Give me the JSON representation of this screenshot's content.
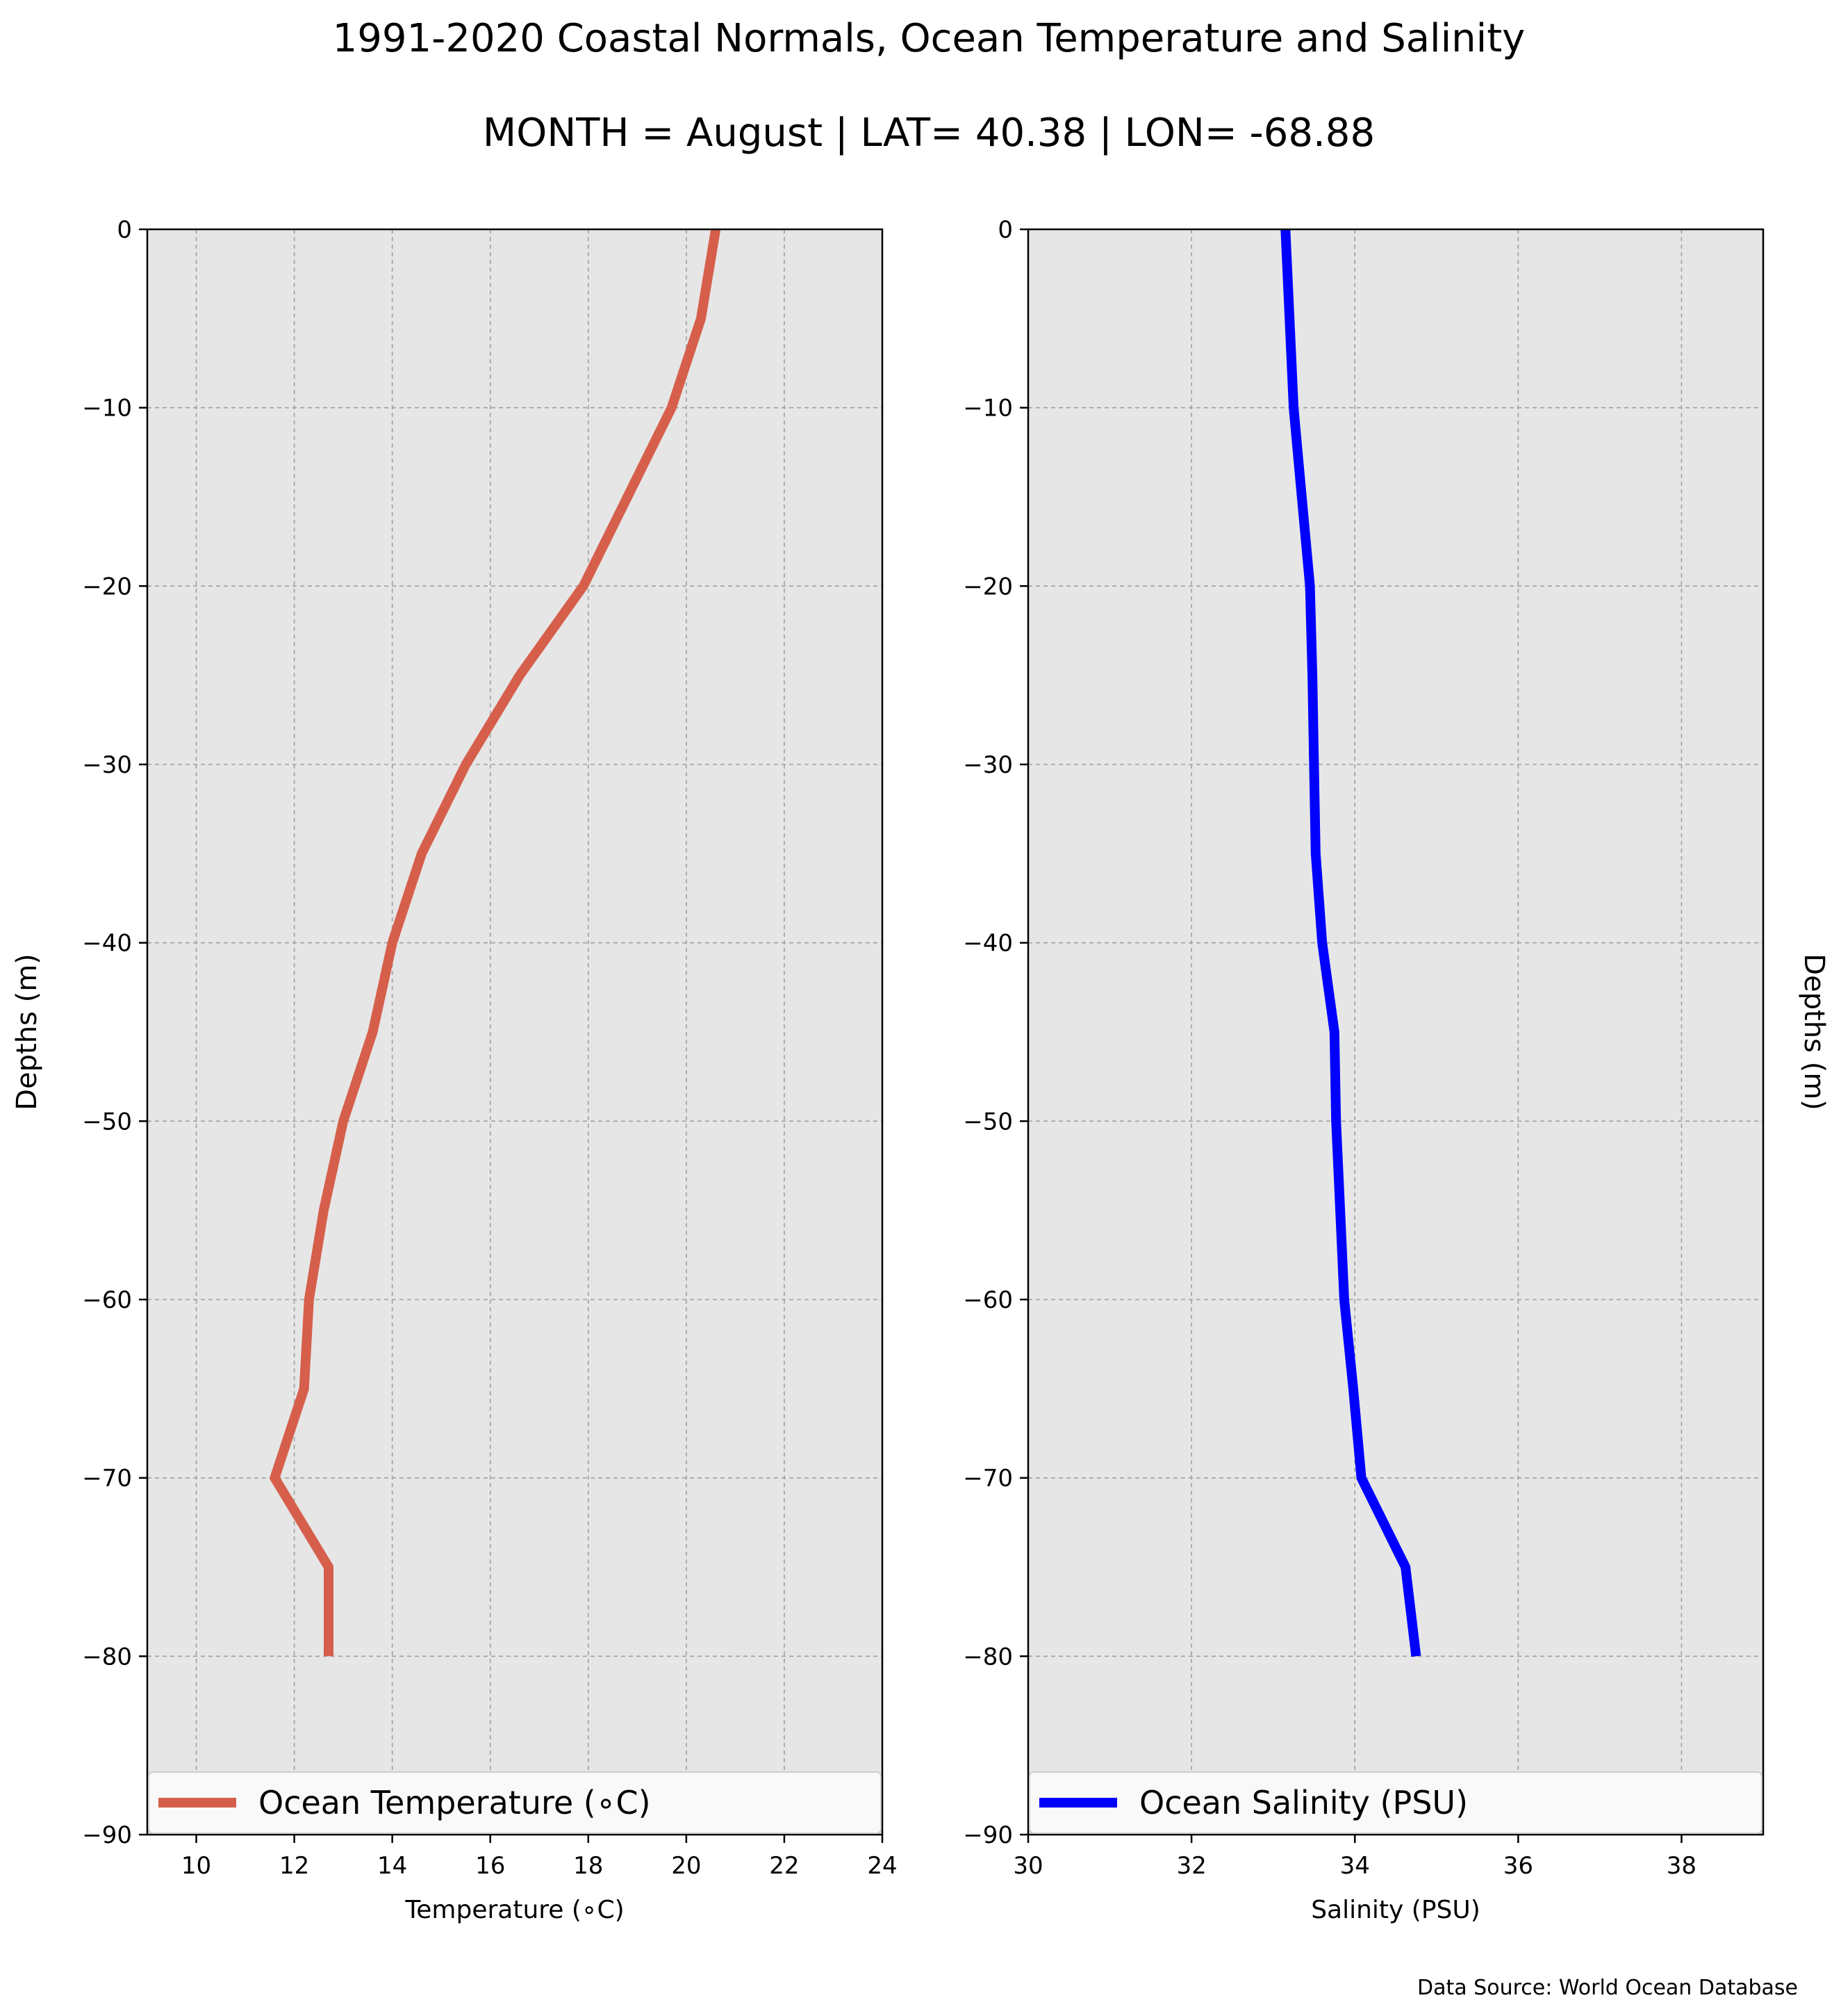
{
  "title": "1991-2020 Coastal Normals, Ocean Temperature and Salinity",
  "subtitle": "MONTH = August | LAT= 40.38 | LON= -68.88",
  "source": "Data Source: World Ocean Database",
  "chart_data": [
    {
      "type": "line",
      "xlabel": "Temperature (∘C)",
      "ylabel": "Depths (m)",
      "xlim": [
        9,
        24
      ],
      "ylim": [
        -90,
        0
      ],
      "xticks": [
        10,
        12,
        14,
        16,
        18,
        20,
        22,
        24
      ],
      "xtick_labels": [
        "10",
        "12",
        "14",
        "16",
        "18",
        "20",
        "22",
        "24"
      ],
      "yticks": [
        0,
        -10,
        -20,
        -30,
        -40,
        -50,
        -60,
        -70,
        -80,
        -90
      ],
      "ytick_labels": [
        "0",
        "−10",
        "−20",
        "−30",
        "−40",
        "−50",
        "−60",
        "−70",
        "−80",
        "−90"
      ],
      "grid": true,
      "legend": "bottom, full width",
      "series": [
        {
          "name": "Ocean Temperature (∘C)",
          "color": "#d65f4c",
          "x": [
            20.6,
            20.3,
            19.7,
            18.8,
            17.9,
            16.6,
            15.5,
            14.6,
            14.0,
            13.6,
            13.0,
            12.6,
            12.3,
            12.2,
            11.6,
            12.7,
            12.7
          ],
          "y": [
            0,
            -5,
            -10,
            -15,
            -20,
            -25,
            -30,
            -35,
            -40,
            -45,
            -50,
            -55,
            -60,
            -65,
            -70,
            -75,
            -80
          ]
        }
      ]
    },
    {
      "type": "line",
      "xlabel": "Salinity (PSU)",
      "ylabel": "Depths (m)",
      "xlim": [
        30,
        39
      ],
      "ylim": [
        -90,
        0
      ],
      "xticks": [
        30,
        32,
        34,
        36,
        38
      ],
      "xtick_labels": [
        "30",
        "32",
        "34",
        "36",
        "38"
      ],
      "yticks": [
        0,
        -10,
        -20,
        -30,
        -40,
        -50,
        -60,
        -70,
        -80,
        -90
      ],
      "ytick_labels": [
        "0",
        "−10",
        "−20",
        "−30",
        "−40",
        "−50",
        "−60",
        "−70",
        "−80",
        "−90"
      ],
      "grid": true,
      "legend": "bottom, full width",
      "series": [
        {
          "name": "Ocean Salinity (PSU)",
          "color": "#0000ff",
          "x": [
            33.15,
            33.2,
            33.25,
            33.35,
            33.45,
            33.48,
            33.5,
            33.52,
            33.6,
            33.75,
            33.77,
            33.82,
            33.87,
            33.98,
            34.08,
            34.62,
            34.75
          ],
          "y": [
            0,
            -5,
            -10,
            -15,
            -20,
            -25,
            -30,
            -35,
            -40,
            -45,
            -50,
            -55,
            -60,
            -65,
            -70,
            -75,
            -80
          ]
        }
      ]
    }
  ]
}
